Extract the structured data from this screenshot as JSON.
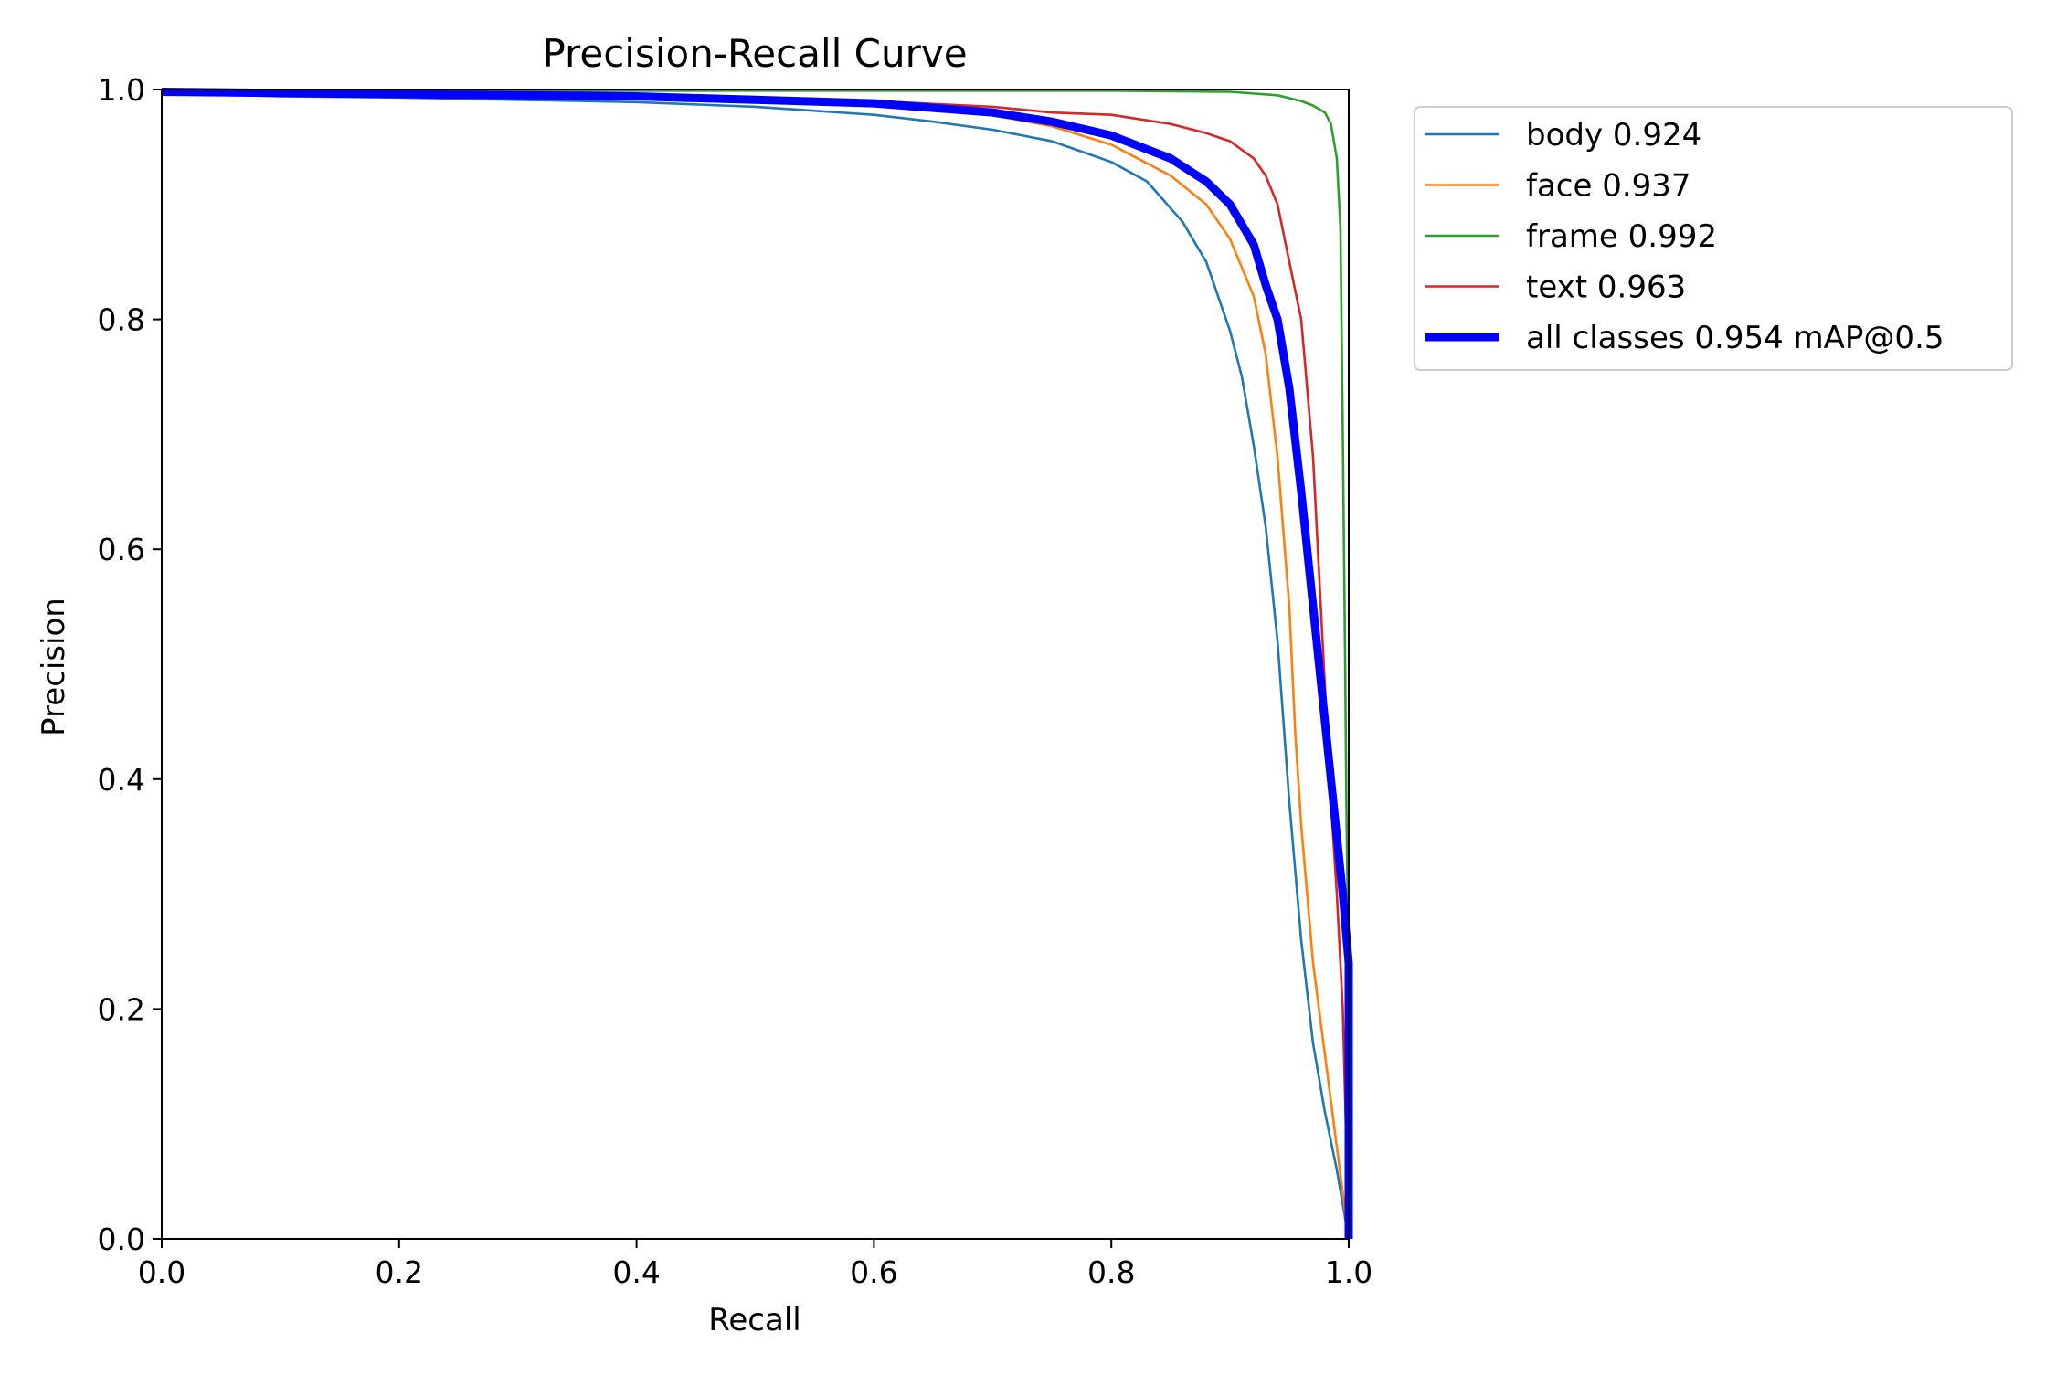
{
  "chart_data": {
    "type": "line",
    "title": "Precision-Recall Curve",
    "xlabel": "Recall",
    "ylabel": "Precision",
    "xlim": [
      0.0,
      1.0
    ],
    "ylim": [
      0.0,
      1.0
    ],
    "xticks": [
      "0.0",
      "0.2",
      "0.4",
      "0.6",
      "0.8",
      "1.0"
    ],
    "yticks": [
      "0.0",
      "0.2",
      "0.4",
      "0.6",
      "0.8",
      "1.0"
    ],
    "grid": false,
    "legend_position": "outside-upper-right",
    "series": [
      {
        "name": "body 0.924",
        "color": "#1f77b4",
        "x": [
          0.0,
          0.1,
          0.2,
          0.3,
          0.4,
          0.5,
          0.6,
          0.65,
          0.7,
          0.75,
          0.8,
          0.83,
          0.86,
          0.88,
          0.9,
          0.91,
          0.92,
          0.93,
          0.94,
          0.95,
          0.96,
          0.97,
          0.98,
          0.99,
          1.0
        ],
        "y": [
          0.997,
          0.994,
          0.993,
          0.991,
          0.989,
          0.985,
          0.978,
          0.972,
          0.965,
          0.955,
          0.937,
          0.92,
          0.885,
          0.85,
          0.79,
          0.75,
          0.69,
          0.62,
          0.52,
          0.38,
          0.26,
          0.17,
          0.11,
          0.06,
          0.0
        ]
      },
      {
        "name": "face 0.937",
        "color": "#ff7f0e",
        "x": [
          0.0,
          0.2,
          0.4,
          0.6,
          0.7,
          0.75,
          0.8,
          0.85,
          0.88,
          0.9,
          0.92,
          0.93,
          0.94,
          0.95,
          0.955,
          0.96,
          0.965,
          0.97,
          0.98,
          0.99,
          1.0
        ],
        "y": [
          0.998,
          0.996,
          0.993,
          0.987,
          0.978,
          0.968,
          0.952,
          0.925,
          0.9,
          0.87,
          0.82,
          0.77,
          0.68,
          0.55,
          0.44,
          0.36,
          0.3,
          0.24,
          0.16,
          0.08,
          0.0
        ]
      },
      {
        "name": "frame 0.992",
        "color": "#2ca02c",
        "x": [
          0.0,
          0.3,
          0.5,
          0.7,
          0.8,
          0.9,
          0.94,
          0.96,
          0.97,
          0.98,
          0.985,
          0.99,
          0.993,
          0.995,
          0.997,
          0.998,
          0.999,
          1.0,
          1.0
        ],
        "y": [
          0.999,
          0.999,
          0.999,
          0.999,
          0.999,
          0.998,
          0.995,
          0.99,
          0.986,
          0.98,
          0.97,
          0.94,
          0.88,
          0.7,
          0.5,
          0.38,
          0.3,
          0.25,
          0.0
        ]
      },
      {
        "name": "text 0.963",
        "color": "#d62728",
        "x": [
          0.0,
          0.2,
          0.4,
          0.6,
          0.7,
          0.75,
          0.8,
          0.85,
          0.88,
          0.9,
          0.92,
          0.93,
          0.94,
          0.95,
          0.96,
          0.97,
          0.975,
          0.98,
          0.985,
          0.99,
          0.995,
          1.0
        ],
        "y": [
          0.998,
          0.997,
          0.995,
          0.99,
          0.985,
          0.98,
          0.978,
          0.97,
          0.962,
          0.955,
          0.94,
          0.925,
          0.9,
          0.85,
          0.8,
          0.68,
          0.58,
          0.48,
          0.38,
          0.3,
          0.2,
          0.0
        ]
      },
      {
        "name": "all classes 0.954 mAP@0.5",
        "color": "#0000ff",
        "bold": true,
        "x": [
          0.0,
          0.2,
          0.4,
          0.6,
          0.7,
          0.75,
          0.8,
          0.85,
          0.88,
          0.9,
          0.92,
          0.93,
          0.94,
          0.95,
          0.96,
          0.97,
          0.98,
          0.99,
          0.995,
          1.0,
          1.0
        ],
        "y": [
          0.998,
          0.996,
          0.994,
          0.988,
          0.98,
          0.972,
          0.96,
          0.94,
          0.92,
          0.9,
          0.865,
          0.83,
          0.8,
          0.74,
          0.65,
          0.55,
          0.45,
          0.35,
          0.3,
          0.24,
          0.0
        ]
      }
    ]
  }
}
